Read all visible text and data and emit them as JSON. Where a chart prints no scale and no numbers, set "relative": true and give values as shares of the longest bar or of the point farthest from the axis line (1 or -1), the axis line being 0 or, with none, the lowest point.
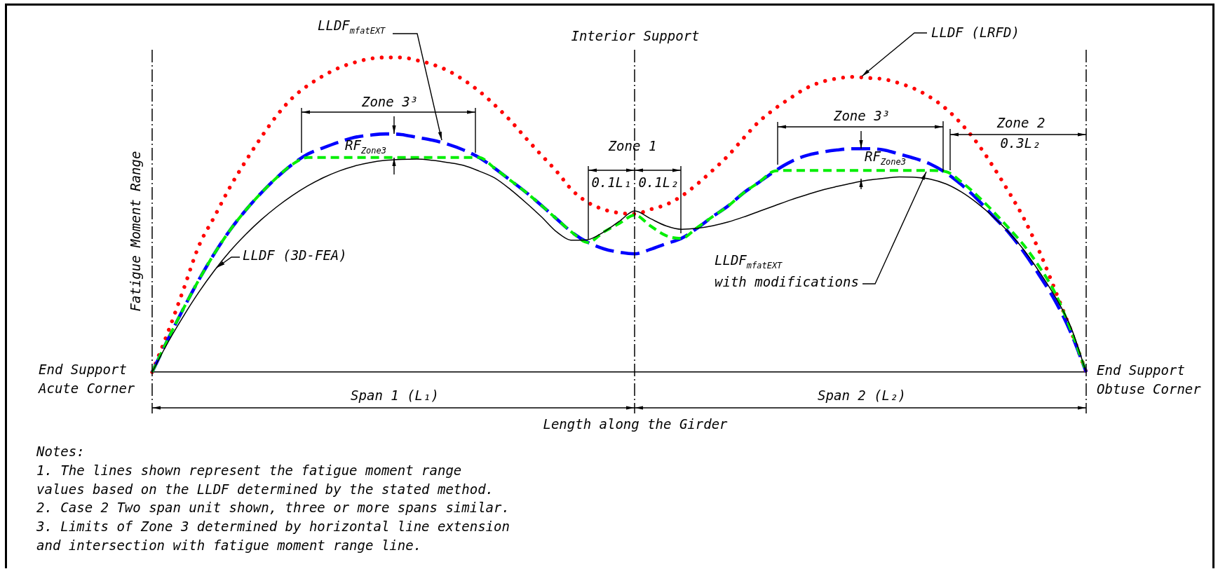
{
  "chart_data": {
    "type": "line",
    "relative": true,
    "xlabel": "Length along the Girder",
    "ylabel": "Fatigue Moment Range",
    "categories": [
      null,
      null,
      null,
      null,
      null,
      null,
      null,
      null,
      null,
      null,
      null,
      null,
      null,
      null,
      null,
      null,
      null,
      null,
      null,
      null,
      null,
      null,
      null,
      null,
      null,
      null,
      null,
      null,
      null,
      null,
      null,
      null,
      null,
      null,
      null,
      null,
      null,
      null,
      null,
      null,
      null,
      null,
      null,
      null,
      null,
      null,
      null,
      null,
      null,
      null,
      null,
      null,
      null,
      null,
      null,
      null,
      null,
      null,
      null,
      null,
      null
    ],
    "series": [
      {
        "name": "LLDF (LRFD)",
        "color": "#ff0000",
        "line_style": "dotted",
        "values": [
          0,
          0.125,
          0.261,
          0.401,
          0.494,
          0.588,
          0.67,
          0.746,
          0.815,
          0.871,
          0.911,
          0.942,
          0.967,
          0.984,
          0.996,
          1,
          1,
          0.991,
          0.978,
          0.958,
          0.929,
          0.893,
          0.849,
          0.8,
          0.744,
          0.69,
          0.637,
          0.577,
          0.539,
          0.517,
          0.506,
          0.503,
          0.517,
          0.532,
          0.559,
          0.597,
          0.641,
          0.688,
          0.744,
          0.797,
          0.837,
          0.871,
          0.902,
          0.922,
          0.933,
          0.938,
          0.935,
          0.931,
          0.918,
          0.9,
          0.873,
          0.837,
          0.788,
          0.728,
          0.655,
          0.575,
          0.488,
          0.383,
          0.261,
          0.134,
          0
        ]
      },
      {
        "name": "LLDF$_{mfatEXT}$",
        "color": "#0000ff",
        "line_style": "dashed",
        "values": [
          0,
          0.103,
          0.201,
          0.293,
          0.377,
          0.451,
          0.514,
          0.569,
          0.618,
          0.66,
          0.693,
          0.713,
          0.731,
          0.746,
          0.753,
          0.757,
          0.755,
          0.746,
          0.737,
          0.724,
          0.706,
          0.682,
          0.648,
          0.61,
          0.572,
          0.53,
          0.486,
          0.443,
          0.412,
          0.392,
          0.381,
          0.376,
          0.39,
          0.408,
          0.425,
          0.457,
          0.494,
          0.528,
          0.57,
          0.604,
          0.639,
          0.668,
          0.688,
          0.699,
          0.706,
          0.71,
          0.71,
          0.706,
          0.693,
          0.679,
          0.661,
          0.633,
          0.595,
          0.55,
          0.497,
          0.445,
          0.381,
          0.307,
          0.227,
          0.127,
          0
        ]
      },
      {
        "name": "LLDF$_{mfatEXT}$\nwith modifications",
        "color": "#00ee00",
        "line_style": "dashed",
        "values": [
          0,
          0.103,
          0.201,
          0.293,
          0.377,
          0.451,
          0.514,
          0.569,
          0.618,
          0.66,
          0.682,
          0.682,
          0.682,
          0.682,
          0.682,
          0.682,
          0.682,
          0.682,
          0.682,
          0.682,
          0.682,
          0.682,
          0.648,
          0.61,
          0.572,
          0.53,
          0.486,
          0.443,
          0.412,
          0.445,
          0.472,
          0.499,
          0.465,
          0.434,
          0.425,
          0.459,
          0.494,
          0.528,
          0.57,
          0.604,
          0.639,
          0.641,
          0.641,
          0.641,
          0.641,
          0.641,
          0.641,
          0.641,
          0.641,
          0.641,
          0.641,
          0.637,
          0.604,
          0.561,
          0.512,
          0.459,
          0.403,
          0.334,
          0.252,
          0.136,
          0
        ]
      },
      {
        "name": "LLDF (3D-FEA)",
        "color": "#000000",
        "line_style": "solid",
        "values": [
          0,
          0.093,
          0.177,
          0.254,
          0.323,
          0.384,
          0.437,
          0.484,
          0.525,
          0.561,
          0.592,
          0.618,
          0.639,
          0.655,
          0.666,
          0.673,
          0.676,
          0.677,
          0.673,
          0.666,
          0.657,
          0.639,
          0.617,
          0.581,
          0.539,
          0.494,
          0.445,
          0.419,
          0.421,
          0.445,
          0.479,
          0.512,
          0.488,
          0.465,
          0.454,
          0.457,
          0.465,
          0.477,
          0.493,
          0.511,
          0.529,
          0.547,
          0.563,
          0.578,
          0.59,
          0.601,
          0.61,
          0.616,
          0.62,
          0.619,
          0.613,
          0.598,
          0.572,
          0.537,
          0.495,
          0.446,
          0.388,
          0.318,
          0.24,
          0.145,
          0
        ]
      }
    ],
    "annotations": [
      "Interior Support",
      "Zone 3³",
      "RF$_{Zone3}$",
      "Zone 1",
      "0.1L₁",
      "0.1L₂",
      "Zone 3³",
      "RF$_{Zone3}$",
      "Zone 2",
      "0.3L₂",
      "End Support\nAcute Corner",
      "End Support\nObtuse Corner",
      "Span 1 (L₁)",
      "Span 2 (L₂)",
      "Notes:",
      "1. The lines shown represent the fatigue moment range\nvalues based on the LLDF determined by the stated method.",
      "2. Case 2 Two span unit shown, three or more spans similar.",
      "3. Limits of Zone 3 determined by horizontal line extension\nand intersection with fatigue moment range line."
    ]
  }
}
